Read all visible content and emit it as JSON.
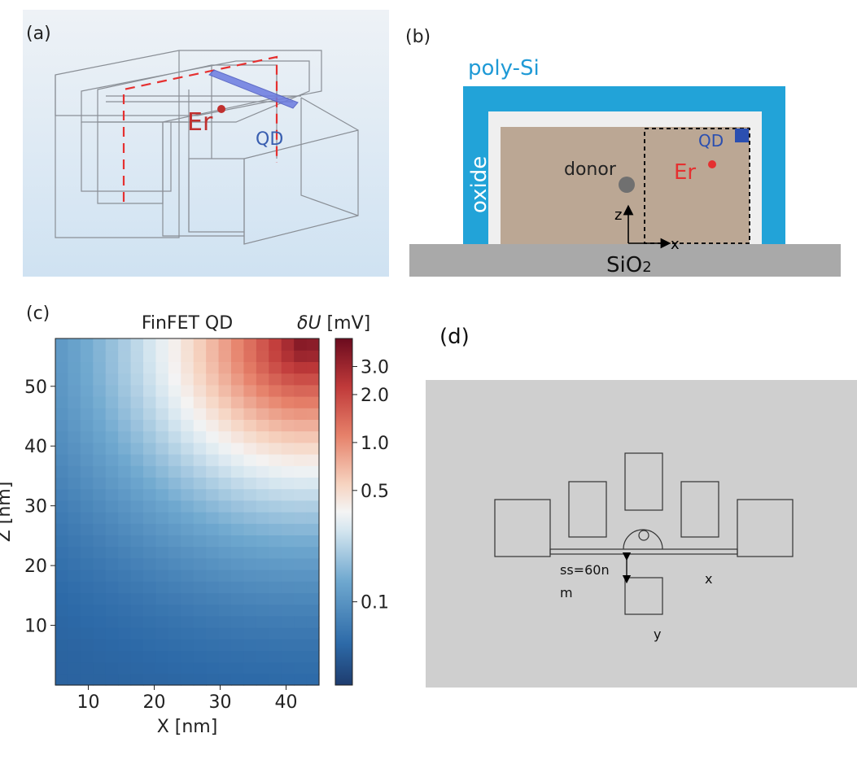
{
  "panel_a": {
    "label": "(a)",
    "er_label": "Er",
    "qd_label": "QD"
  },
  "panel_b": {
    "label": "(b)",
    "polysi_label": "poly-Si",
    "oxide_label": "oxide",
    "donor_label": "donor",
    "er_label": "Er",
    "qd_label": "QD",
    "z_label": "z",
    "x_label": "x",
    "sio2_label": "SiO",
    "sio2_sub": "2"
  },
  "panel_c": {
    "label": "(c)",
    "title": "FinFET QD",
    "colorbar_label": "δU",
    "colorbar_unit": " [mV]",
    "xlabel": "X [nm]",
    "ylabel": "Z [nm]",
    "xticks": [
      "10",
      "20",
      "30",
      "40"
    ],
    "yticks": [
      "10",
      "20",
      "30",
      "40",
      "50"
    ],
    "cbticks": [
      "0.1",
      "0.5",
      "1.0",
      "2.0",
      "3.0"
    ]
  },
  "panel_d": {
    "label": "(d)",
    "ss_line1": "ss=60n",
    "ss_line2": "m",
    "x_label": "x",
    "y_label": "y"
  },
  "chart_data": {
    "type": "heatmap",
    "title": "FinFET QD",
    "xlabel": "X [nm]",
    "ylabel": "Z [nm]",
    "colorbar_label": "δU [mV]",
    "colorbar_scale": "log",
    "xlim": [
      5,
      45
    ],
    "ylim": [
      0,
      58
    ],
    "clim": [
      0.03,
      4.5
    ],
    "peak_location_nm": [
      43,
      57
    ],
    "peak_value_mV": 4.0,
    "value_at_origin_mV": 0.05,
    "colormap": "RdBu_r",
    "grid": false
  }
}
